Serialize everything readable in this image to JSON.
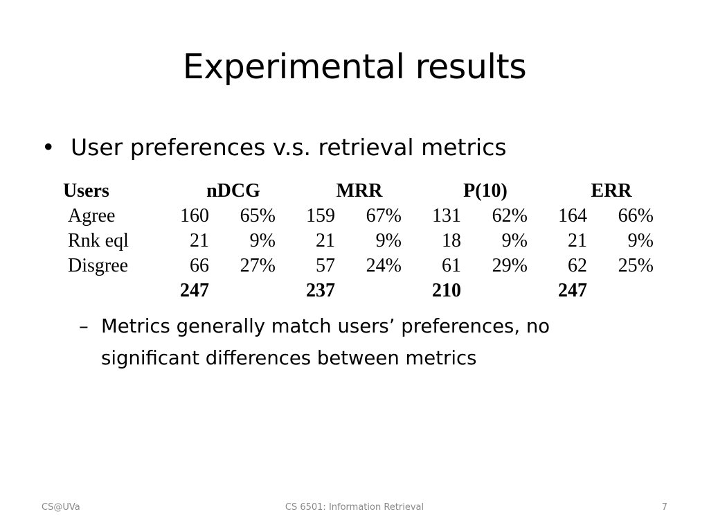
{
  "slide": {
    "title": "Experimental results",
    "bullet": {
      "marker": "•",
      "text": "User preferences v.s. retrieval metrics"
    },
    "table": {
      "headers": [
        "Users",
        "nDCG",
        "MRR",
        "P(10)",
        "ERR"
      ],
      "rows": [
        {
          "label": "Agree",
          "cells": [
            [
              "160",
              "65%"
            ],
            [
              "159",
              "67%"
            ],
            [
              "131",
              "62%"
            ],
            [
              "164",
              "66%"
            ]
          ]
        },
        {
          "label": "Rnk eql",
          "cells": [
            [
              "21",
              "9%"
            ],
            [
              "21",
              "9%"
            ],
            [
              "18",
              "9%"
            ],
            [
              "21",
              "9%"
            ]
          ]
        },
        {
          "label": "Disgree",
          "cells": [
            [
              "66",
              "27%"
            ],
            [
              "57",
              "24%"
            ],
            [
              "61",
              "29%"
            ],
            [
              "62",
              "25%"
            ]
          ]
        }
      ],
      "totals": [
        "247",
        "237",
        "210",
        "247"
      ]
    },
    "sub_bullet": {
      "marker": "–",
      "text": "Metrics generally match users’ preferences, no significant differences between metrics"
    }
  },
  "footer": {
    "left": "CS@UVa",
    "center": "CS 6501: Information Retrieval",
    "right": "7"
  }
}
